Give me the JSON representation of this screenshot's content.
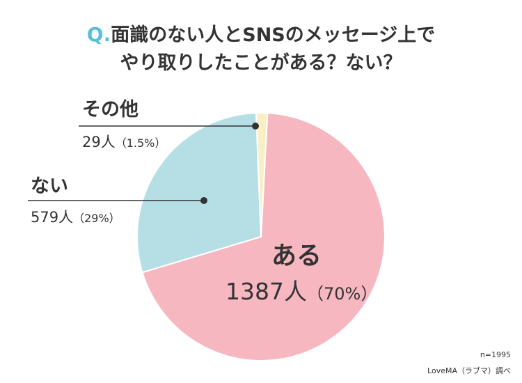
{
  "title": {
    "q_mark": "Q.",
    "line1": "面識のない人とSNSのメッセージ上で",
    "line2": "やり取りしたことがある？ない？"
  },
  "chart_data": {
    "type": "pie",
    "title": "面識のない人とSNSのメッセージ上でやり取りしたことがある？ない？",
    "unit": "人",
    "slices": [
      {
        "label": "ある",
        "count": 1387,
        "percent": 70,
        "count_text": "1387人",
        "percent_text": "（70%）",
        "color": "#f6b7c1"
      },
      {
        "label": "ない",
        "count": 579,
        "percent": 29,
        "count_text": "579人",
        "percent_text": "（29%）",
        "color": "#b6dfe5"
      },
      {
        "label": "その他",
        "count": 29,
        "percent": 1.5,
        "count_text": "29人",
        "percent_text": "（1.5%）",
        "color": "#f8efc5"
      }
    ]
  },
  "footer": {
    "n": "n=1995",
    "source": "LoveMA（ラブマ）調べ"
  },
  "colors": {
    "accent": "#5bbfd9",
    "text": "#333333",
    "leader": "#333333"
  }
}
